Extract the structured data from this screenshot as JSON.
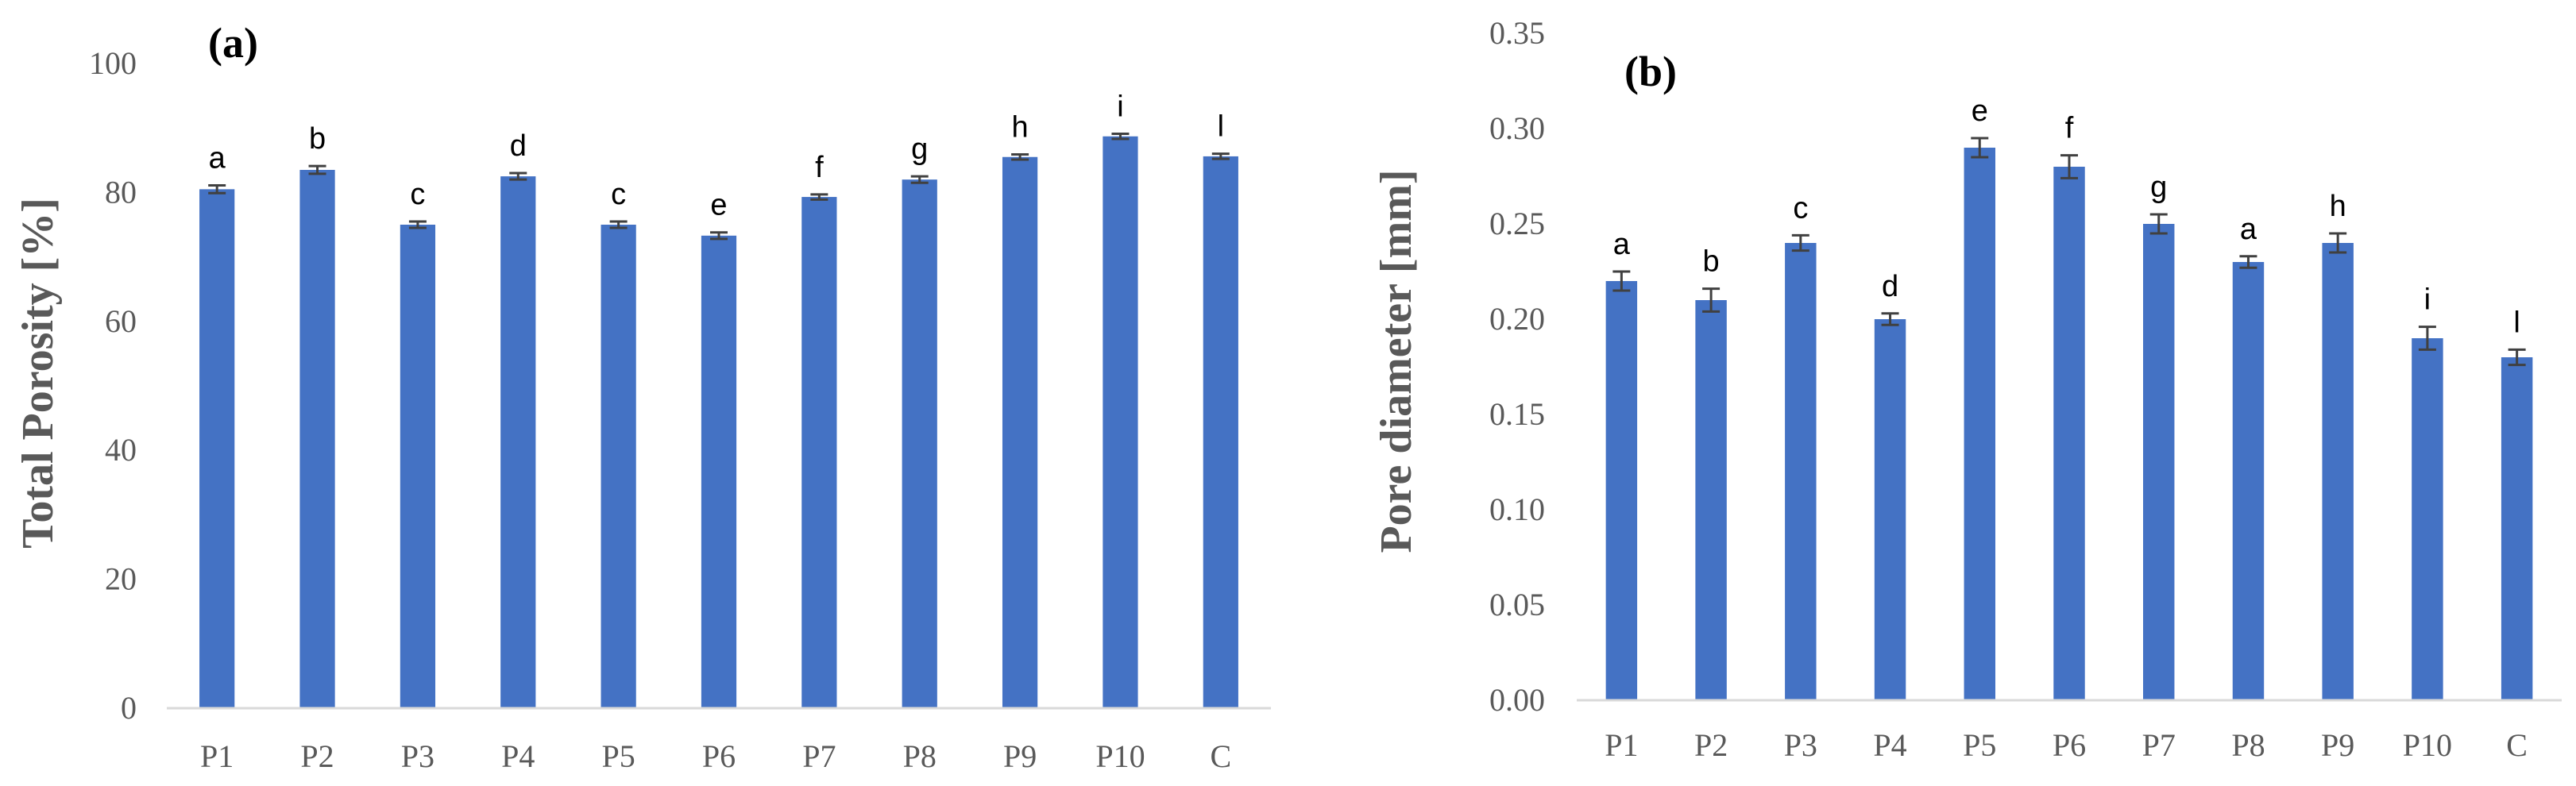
{
  "figure": {
    "panel_count": 2
  },
  "colors": {
    "bar": "#4472C4",
    "axis": "#D9D9D9",
    "error": "#404040"
  },
  "chart_data": [
    {
      "type": "bar",
      "panel": "(a)",
      "title": "",
      "xlabel": "",
      "ylabel": "Total Porosity [%]",
      "categories": [
        "P1",
        "P2",
        "P3",
        "P4",
        "P5",
        "P6",
        "P7",
        "P8",
        "P9",
        "P10",
        "C"
      ],
      "values": [
        80.5,
        83.5,
        75,
        82.5,
        75,
        73.3,
        79.3,
        82,
        85.5,
        88.7,
        85.6
      ],
      "errors": [
        0.6,
        0.6,
        0.5,
        0.5,
        0.5,
        0.5,
        0.4,
        0.5,
        0.4,
        0.4,
        0.4
      ],
      "labels": [
        "a",
        "b",
        "c",
        "d",
        "c",
        "e",
        "f",
        "g",
        "h",
        "i",
        "l"
      ],
      "ylim": [
        0,
        100
      ],
      "yticks": [
        0,
        20,
        40,
        60,
        80,
        100
      ],
      "ytick_labels": [
        "0",
        "20",
        "40",
        "60",
        "80",
        "100"
      ],
      "grid": false
    },
    {
      "type": "bar",
      "panel": "(b)",
      "title": "",
      "xlabel": "",
      "ylabel": "Pore diameter [mm]",
      "categories": [
        "P1",
        "P2",
        "P3",
        "P4",
        "P5",
        "P6",
        "P7",
        "P8",
        "P9",
        "P10",
        "C"
      ],
      "values": [
        0.22,
        0.21,
        0.24,
        0.2,
        0.29,
        0.28,
        0.25,
        0.23,
        0.24,
        0.19,
        0.18
      ],
      "errors": [
        0.005,
        0.006,
        0.004,
        0.003,
        0.005,
        0.006,
        0.005,
        0.003,
        0.005,
        0.006,
        0.004
      ],
      "labels": [
        "a",
        "b",
        "c",
        "d",
        "e",
        "f",
        "g",
        "a",
        "h",
        "i",
        "l"
      ],
      "ylim": [
        0,
        0.35
      ],
      "yticks": [
        0,
        0.05,
        0.1,
        0.15,
        0.2,
        0.25,
        0.3,
        0.35
      ],
      "ytick_labels": [
        "0.00",
        "0.05",
        "0.10",
        "0.15",
        "0.20",
        "0.25",
        "0.30",
        "0.35"
      ],
      "grid": false
    }
  ]
}
